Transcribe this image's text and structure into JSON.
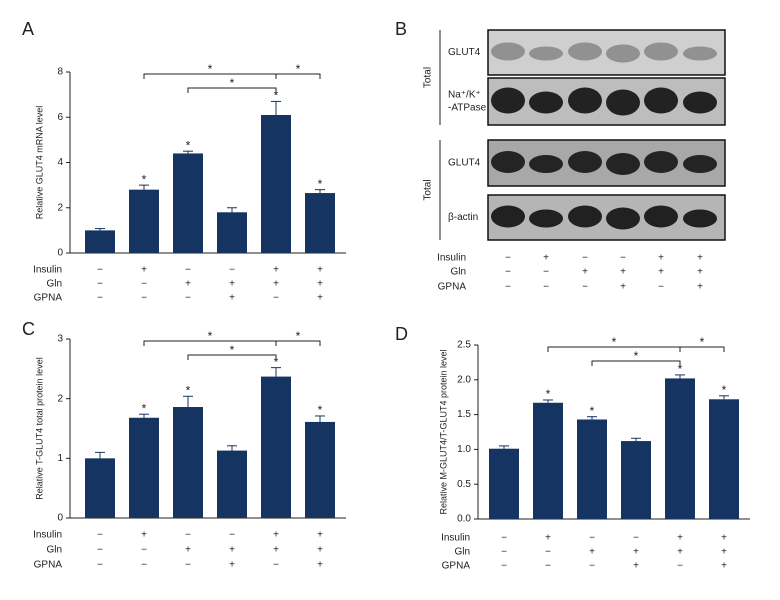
{
  "chart_data": [
    {
      "type": "bar",
      "panel_label": "A",
      "y_label": "Relative GLUT4 mRNA level",
      "color": "#163461",
      "categories": [
        null,
        null,
        null,
        null,
        null,
        null
      ],
      "values": [
        1.0,
        2.8,
        4.4,
        1.8,
        6.1,
        2.65
      ],
      "errors": [
        0.08,
        0.2,
        0.1,
        0.2,
        0.6,
        0.15
      ],
      "markers": [
        null,
        "*",
        "*",
        null,
        "*",
        "*"
      ],
      "comparisons": [
        {
          "from": 1,
          "to": 4,
          "label": "*"
        },
        {
          "from": 2,
          "to": 4,
          "label": "*"
        },
        {
          "from": 4,
          "to": 5,
          "label": "*"
        }
      ],
      "ylim": [
        0,
        8
      ],
      "yticks": [
        0,
        2,
        4,
        6,
        8
      ],
      "conditions": [
        {
          "name": "Insulin",
          "signs": [
            "−",
            "+",
            "−",
            "−",
            "+",
            "+"
          ]
        },
        {
          "name": "Gln",
          "signs": [
            "−",
            "−",
            "+",
            "+",
            "+",
            "+"
          ]
        },
        {
          "name": "GPNA",
          "signs": [
            "−",
            "−",
            "−",
            "+",
            "−",
            "+"
          ]
        }
      ]
    },
    {
      "type": "bar",
      "panel_label": "C",
      "y_label": "Relative T-GLUT4 total protein level",
      "color": "#163461",
      "categories": [
        null,
        null,
        null,
        null,
        null,
        null
      ],
      "values": [
        1.0,
        1.68,
        1.86,
        1.13,
        2.37,
        1.61
      ],
      "errors": [
        0.1,
        0.06,
        0.18,
        0.08,
        0.15,
        0.1
      ],
      "markers": [
        null,
        "*",
        "*",
        null,
        "*",
        "*"
      ],
      "comparisons": [
        {
          "from": 1,
          "to": 4,
          "label": "*"
        },
        {
          "from": 2,
          "to": 4,
          "label": "*"
        },
        {
          "from": 4,
          "to": 5,
          "label": "*"
        }
      ],
      "ylim": [
        0,
        3
      ],
      "yticks": [
        0,
        1,
        2,
        3
      ],
      "conditions": [
        {
          "name": "Insulin",
          "signs": [
            "−",
            "+",
            "−",
            "−",
            "+",
            "+"
          ]
        },
        {
          "name": "Gln",
          "signs": [
            "−",
            "−",
            "+",
            "+",
            "+",
            "+"
          ]
        },
        {
          "name": "GPNA",
          "signs": [
            "−",
            "−",
            "−",
            "+",
            "−",
            "+"
          ]
        }
      ]
    },
    {
      "type": "bar",
      "panel_label": "D",
      "y_label": "Relative M-GLUT4/T-GLUT4 protein level",
      "color": "#163461",
      "categories": [
        null,
        null,
        null,
        null,
        null,
        null
      ],
      "values": [
        1.01,
        1.67,
        1.43,
        1.12,
        2.02,
        1.72
      ],
      "errors": [
        0.04,
        0.04,
        0.04,
        0.04,
        0.05,
        0.05
      ],
      "markers": [
        null,
        "*",
        "*",
        null,
        "*",
        "*"
      ],
      "comparisons": [
        {
          "from": 1,
          "to": 4,
          "label": "*"
        },
        {
          "from": 2,
          "to": 4,
          "label": "*"
        },
        {
          "from": 4,
          "to": 5,
          "label": "*"
        }
      ],
      "ylim": [
        0,
        2.5
      ],
      "yticks": [
        {
          "value": 0,
          "label": "0.0"
        },
        0.5,
        {
          "value": 1,
          "label": "1.0"
        },
        1.5,
        {
          "value": 2,
          "label": "2.0"
        },
        2.5
      ],
      "conditions": [
        {
          "name": "Insulin",
          "signs": [
            "−",
            "+",
            "−",
            "−",
            "+",
            "+"
          ]
        },
        {
          "name": "Gln",
          "signs": [
            "−",
            "−",
            "+",
            "+",
            "+",
            "+"
          ]
        },
        {
          "name": "GPNA",
          "signs": [
            "−",
            "−",
            "−",
            "+",
            "−",
            "+"
          ]
        }
      ]
    }
  ],
  "blot": {
    "panel_label": "B",
    "groups": [
      {
        "label": "Total",
        "rows": [
          [
            "GLUT4"
          ],
          [
            "Na⁺/K⁺",
            "-ATPase"
          ]
        ]
      },
      {
        "label": "Total",
        "rows": [
          [
            "GLUT4"
          ],
          [
            "β-actin"
          ]
        ]
      }
    ],
    "conditions": [
      {
        "name": "Insulin",
        "signs": [
          "−",
          "+",
          "−",
          "−",
          "+",
          "+"
        ]
      },
      {
        "name": "Gln",
        "signs": [
          "−",
          "−",
          "+",
          "+",
          "+",
          "+"
        ]
      },
      {
        "name": "GPNA",
        "signs": [
          "−",
          "−",
          "−",
          "+",
          "−",
          "+"
        ]
      }
    ]
  }
}
